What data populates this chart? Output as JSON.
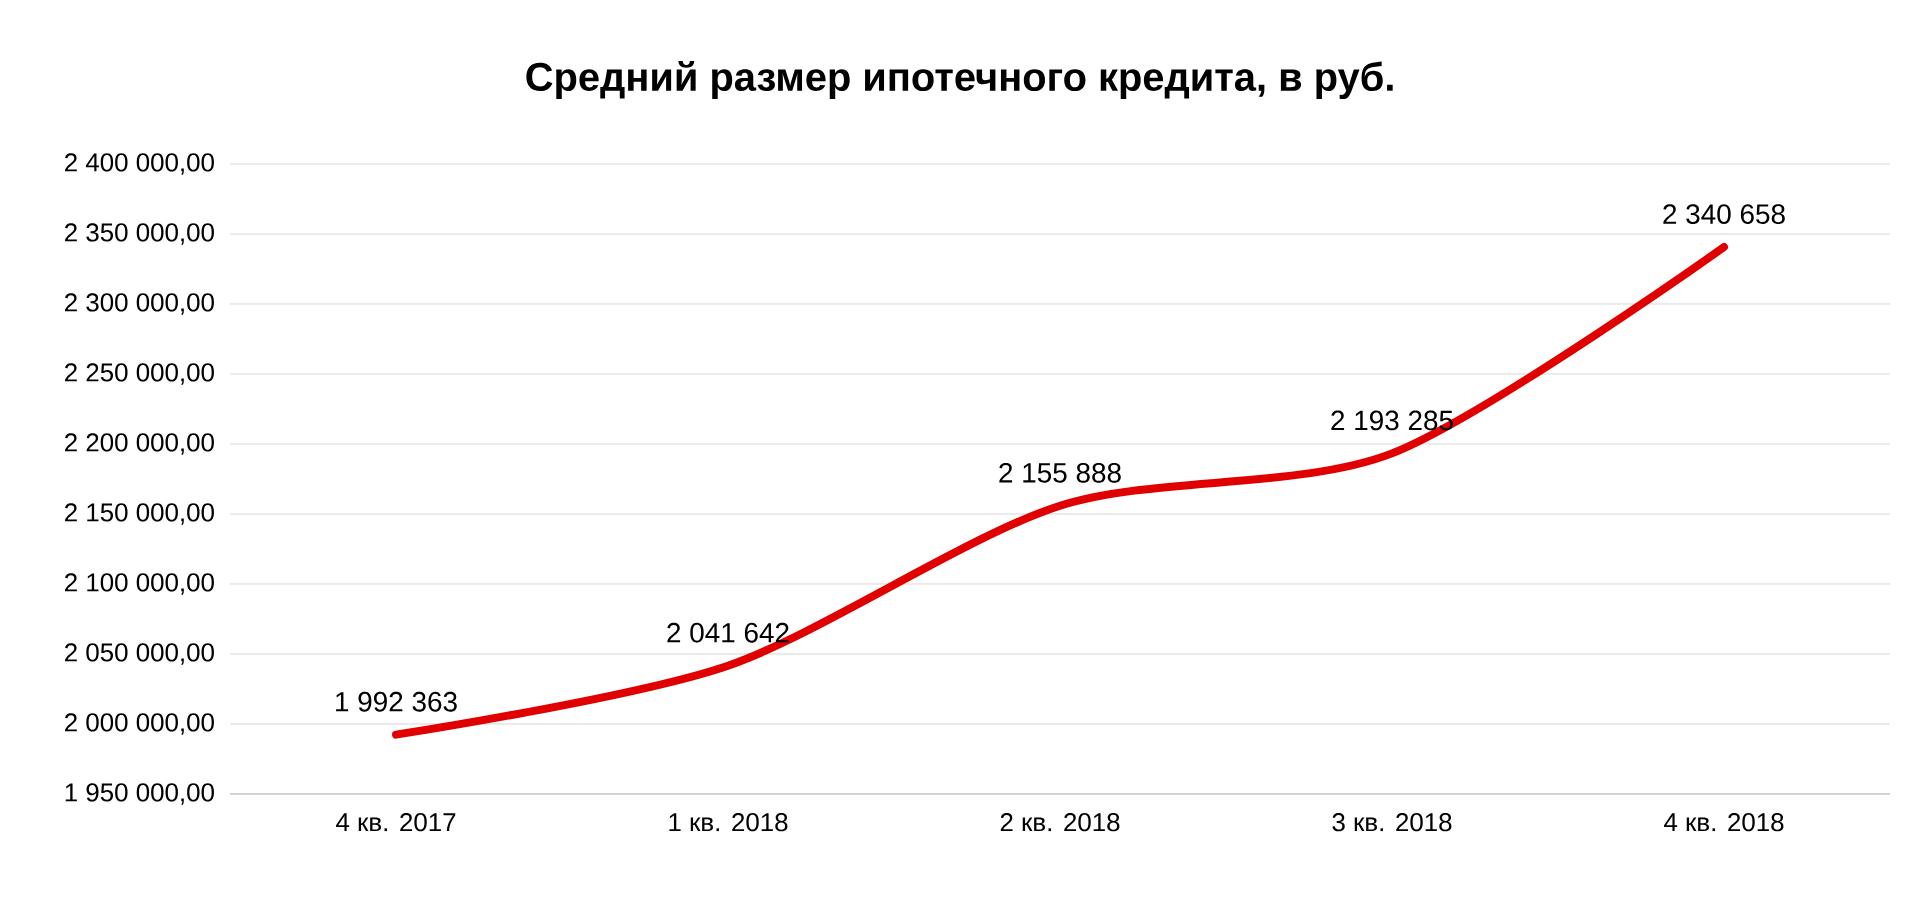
{
  "chart_data": {
    "type": "line",
    "title": "Средний размер ипотечного кредита, в руб.",
    "categories": [
      "4 кв. 2017",
      "1 кв. 2018",
      "2 кв. 2018",
      "3 кв. 2018",
      "4 кв. 2018"
    ],
    "series": [
      {
        "color": "#e00000",
        "values": [
          1992363,
          2041642,
          2155888,
          2193285,
          2340658
        ],
        "value_labels": [
          "1 992 363",
          "2 041 642",
          "2 155 888",
          "2 193 285",
          "2 340 658"
        ]
      }
    ],
    "ylim": [
      1950000,
      2400000
    ],
    "yticks": [
      {
        "value": 1950000,
        "label": "1 950 000,00"
      },
      {
        "value": 2000000,
        "label": "2 000 000,00"
      },
      {
        "value": 2050000,
        "label": "2 050 000,00"
      },
      {
        "value": 2100000,
        "label": "2 100 000,00"
      },
      {
        "value": 2150000,
        "label": "2 150 000,00"
      },
      {
        "value": 2200000,
        "label": "2 200 000,00"
      },
      {
        "value": 2250000,
        "label": "2 250 000,00"
      },
      {
        "value": 2300000,
        "label": "2 300 000,00"
      },
      {
        "value": 2350000,
        "label": "2 350 000,00"
      },
      {
        "value": 2400000,
        "label": "2 400 000,00"
      }
    ],
    "grid": "y",
    "marker": "none",
    "line_style": "solid"
  }
}
